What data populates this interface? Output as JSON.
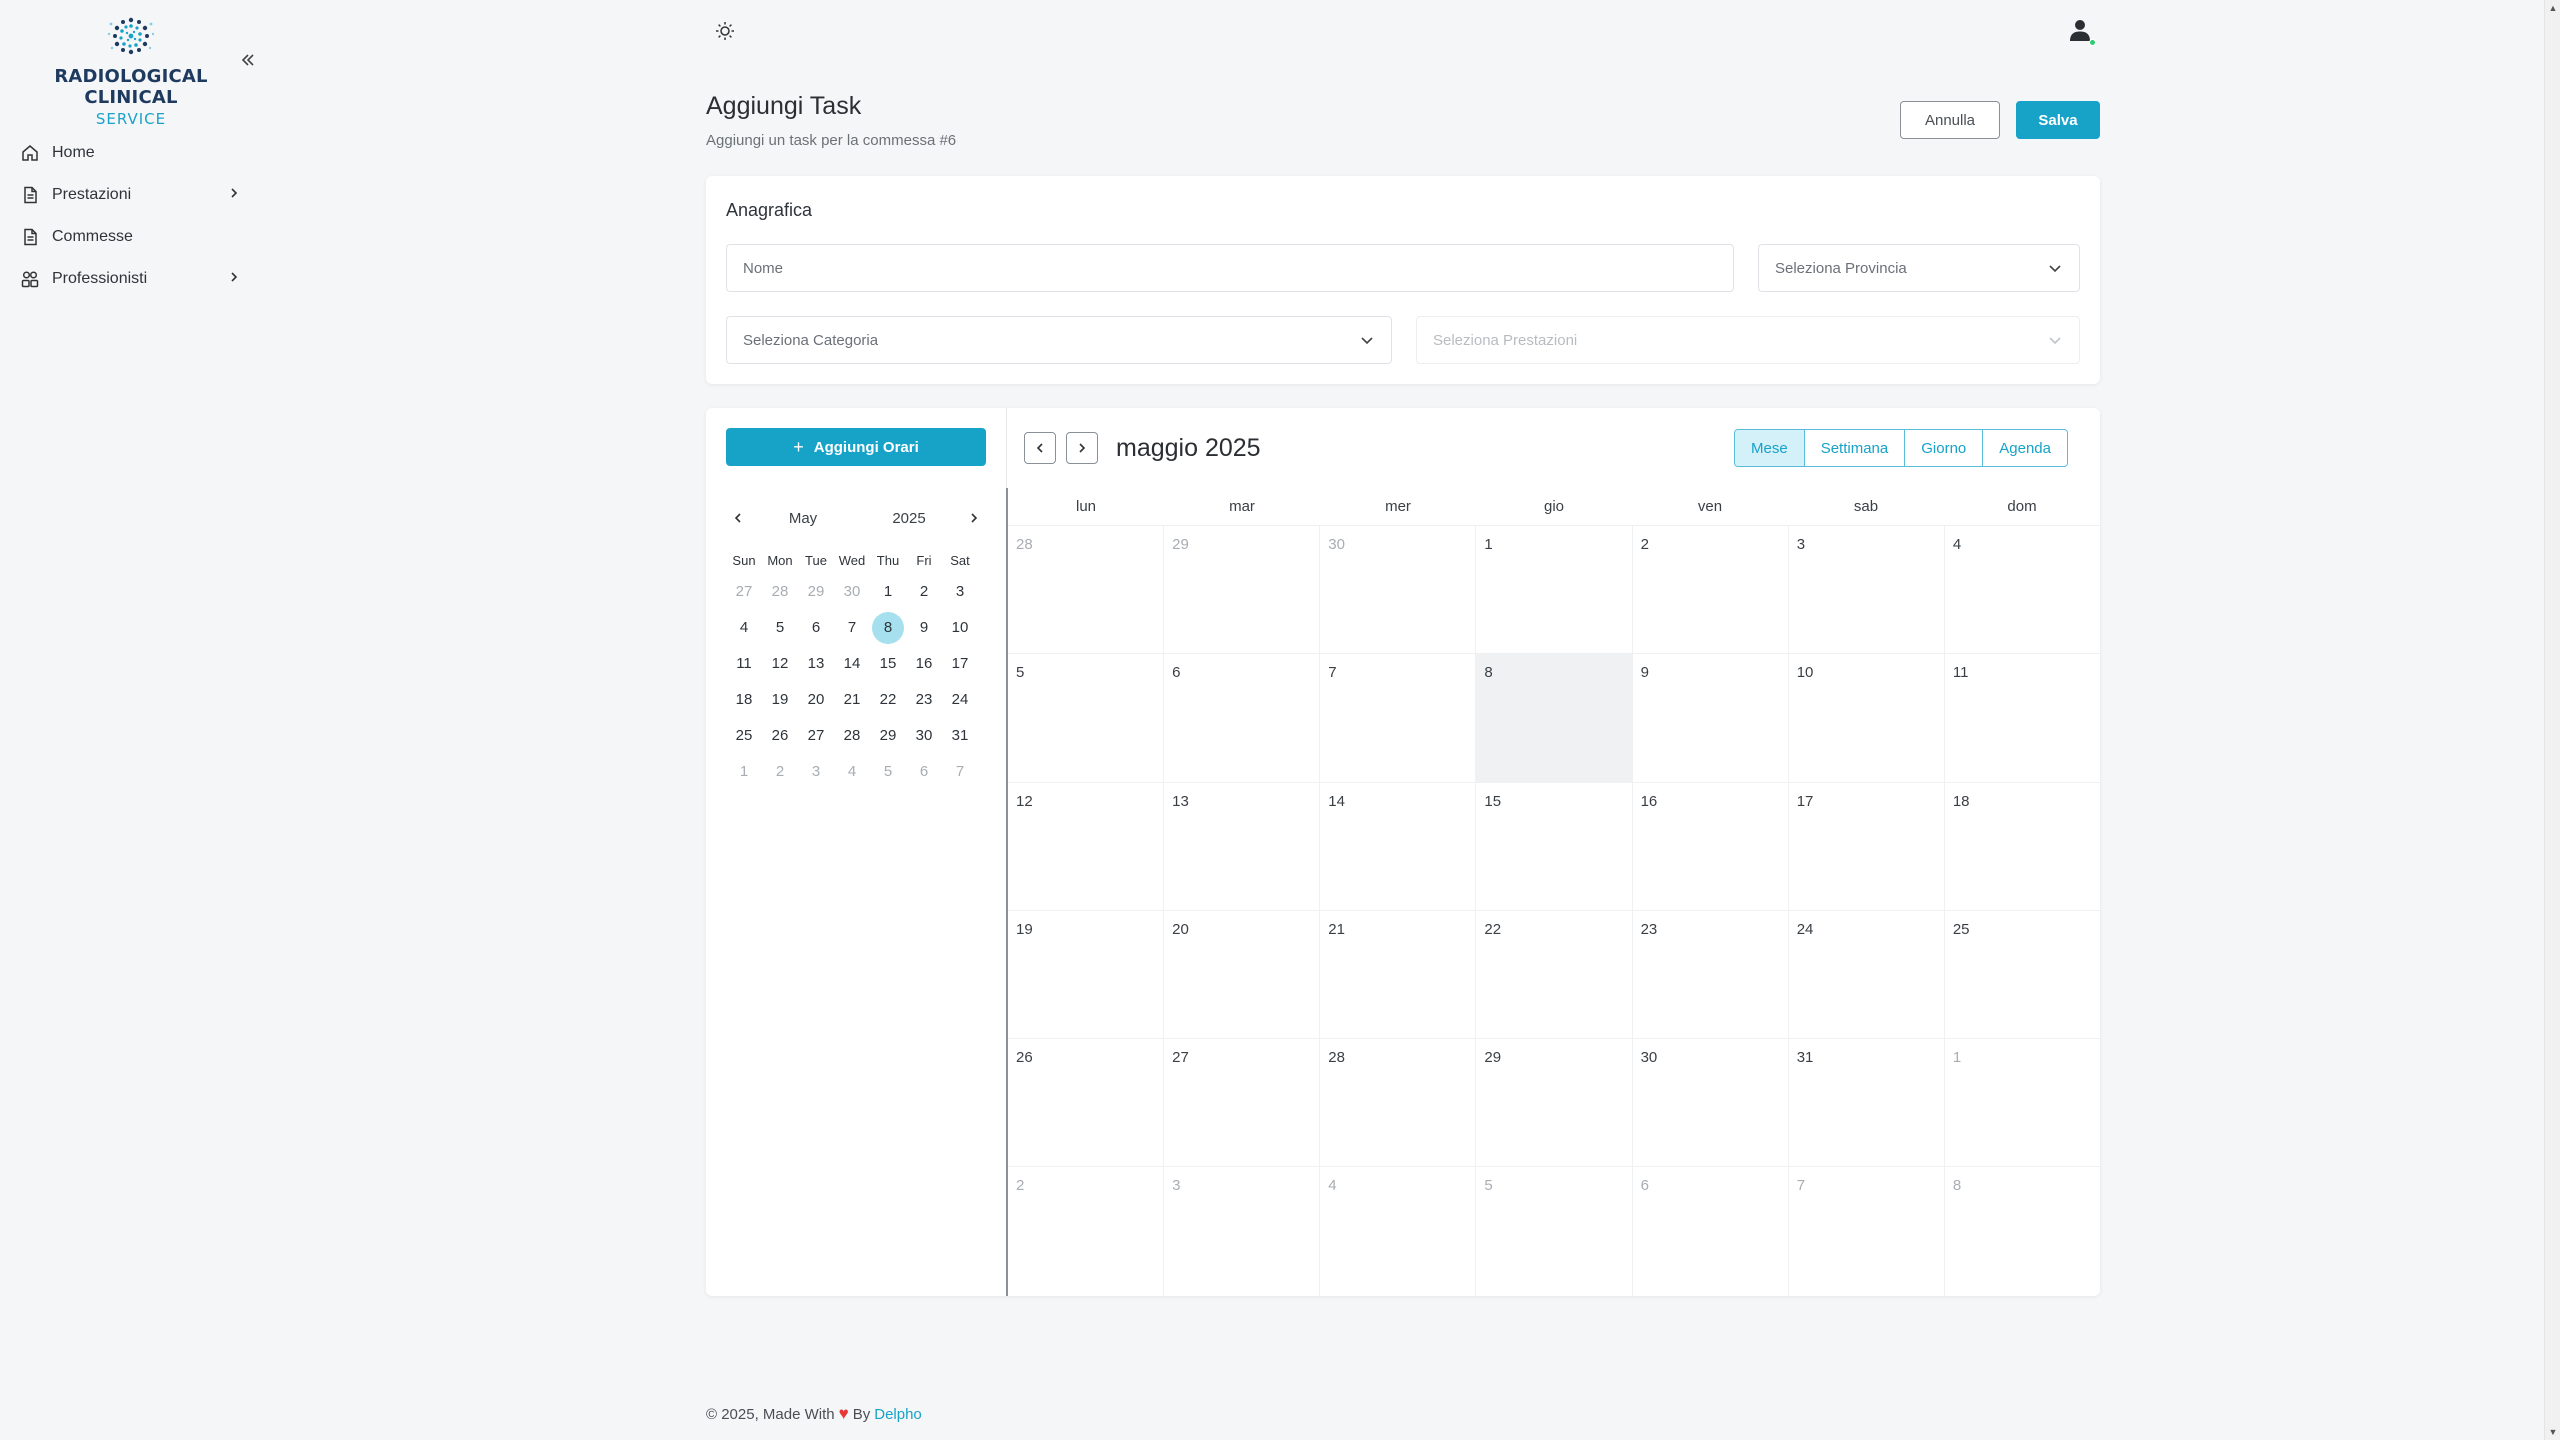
{
  "brand": {
    "title": "RADIOLOGICAL CLINICAL",
    "subtitle": "SERVICE",
    "accent": "#17a2c8"
  },
  "sidebar": {
    "items": [
      {
        "label": "Home",
        "icon": "home-icon",
        "has_children": false
      },
      {
        "label": "Prestazioni",
        "icon": "document-icon",
        "has_children": true
      },
      {
        "label": "Commesse",
        "icon": "document-icon",
        "has_children": false
      },
      {
        "label": "Professionisti",
        "icon": "users-icon",
        "has_children": true
      }
    ]
  },
  "header": {
    "title": "Aggiungi Task",
    "subtitle": "Aggiungi un task per la commessa #6",
    "cancel_label": "Annulla",
    "save_label": "Salva"
  },
  "anagrafica": {
    "title": "Anagrafica",
    "nome_placeholder": "Nome",
    "provincia_placeholder": "Seleziona Provincia",
    "categoria_placeholder": "Seleziona Categoria",
    "prestazioni_placeholder": "Seleziona Prestazioni"
  },
  "calendar": {
    "add_label": "Aggiungi Orari",
    "title": "maggio 2025",
    "views": [
      "Mese",
      "Settimana",
      "Giorno",
      "Agenda"
    ],
    "active_view": "Mese",
    "weekdays": [
      "lun",
      "mar",
      "mer",
      "gio",
      "ven",
      "sab",
      "dom"
    ],
    "weeks": [
      [
        [
          "28",
          true
        ],
        [
          "29",
          true
        ],
        [
          "30",
          true
        ],
        [
          "1",
          false
        ],
        [
          "2",
          false
        ],
        [
          "3",
          false
        ],
        [
          "4",
          false
        ]
      ],
      [
        [
          "5",
          false
        ],
        [
          "6",
          false
        ],
        [
          "7",
          false
        ],
        [
          "8",
          false
        ],
        [
          "9",
          false
        ],
        [
          "10",
          false
        ],
        [
          "11",
          false
        ]
      ],
      [
        [
          "12",
          false
        ],
        [
          "13",
          false
        ],
        [
          "14",
          false
        ],
        [
          "15",
          false
        ],
        [
          "16",
          false
        ],
        [
          "17",
          false
        ],
        [
          "18",
          false
        ]
      ],
      [
        [
          "19",
          false
        ],
        [
          "20",
          false
        ],
        [
          "21",
          false
        ],
        [
          "22",
          false
        ],
        [
          "23",
          false
        ],
        [
          "24",
          false
        ],
        [
          "25",
          false
        ]
      ],
      [
        [
          "26",
          false
        ],
        [
          "27",
          false
        ],
        [
          "28",
          false
        ],
        [
          "29",
          false
        ],
        [
          "30",
          false
        ],
        [
          "31",
          false
        ],
        [
          "1",
          true
        ]
      ],
      [
        [
          "2",
          true
        ],
        [
          "3",
          true
        ],
        [
          "4",
          true
        ],
        [
          "5",
          true
        ],
        [
          "6",
          true
        ],
        [
          "7",
          true
        ],
        [
          "8",
          true
        ]
      ]
    ],
    "today": "8"
  },
  "mini_calendar": {
    "month": "May",
    "year": "2025",
    "weekdays": [
      "Sun",
      "Mon",
      "Tue",
      "Wed",
      "Thu",
      "Fri",
      "Sat"
    ],
    "weeks": [
      [
        [
          "27",
          true
        ],
        [
          "28",
          true
        ],
        [
          "29",
          true
        ],
        [
          "30",
          true
        ],
        [
          "1",
          false
        ],
        [
          "2",
          false
        ],
        [
          "3",
          false
        ]
      ],
      [
        [
          "4",
          false
        ],
        [
          "5",
          false
        ],
        [
          "6",
          false
        ],
        [
          "7",
          false
        ],
        [
          "8",
          false
        ],
        [
          "9",
          false
        ],
        [
          "10",
          false
        ]
      ],
      [
        [
          "11",
          false
        ],
        [
          "12",
          false
        ],
        [
          "13",
          false
        ],
        [
          "14",
          false
        ],
        [
          "15",
          false
        ],
        [
          "16",
          false
        ],
        [
          "17",
          false
        ]
      ],
      [
        [
          "18",
          false
        ],
        [
          "19",
          false
        ],
        [
          "20",
          false
        ],
        [
          "21",
          false
        ],
        [
          "22",
          false
        ],
        [
          "23",
          false
        ],
        [
          "24",
          false
        ]
      ],
      [
        [
          "25",
          false
        ],
        [
          "26",
          false
        ],
        [
          "27",
          false
        ],
        [
          "28",
          false
        ],
        [
          "29",
          false
        ],
        [
          "30",
          false
        ],
        [
          "31",
          false
        ]
      ],
      [
        [
          "1",
          true
        ],
        [
          "2",
          true
        ],
        [
          "3",
          true
        ],
        [
          "4",
          true
        ],
        [
          "5",
          true
        ],
        [
          "6",
          true
        ],
        [
          "7",
          true
        ]
      ]
    ],
    "selected": "8"
  },
  "footer": {
    "text": "© 2025, Made With",
    "by": "By",
    "link": "Delpho"
  }
}
